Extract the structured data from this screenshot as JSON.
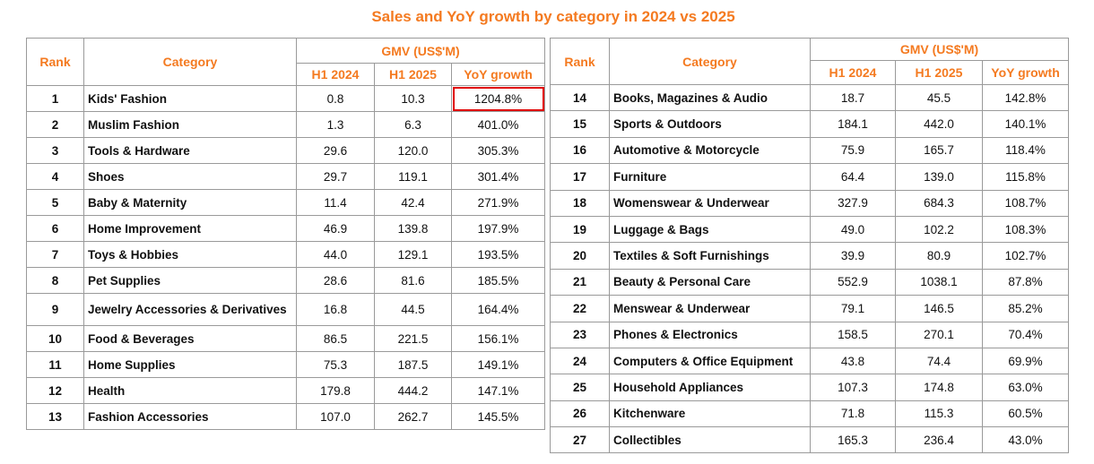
{
  "chart_data": {
    "type": "table",
    "title": "Sales and YoY growth by category in 2024 vs 2025",
    "headers": {
      "rank": "Rank",
      "category": "Category",
      "group": "GMV (US$'M)",
      "h1_2024": "H1 2024",
      "h1_2025": "H1 2025",
      "yoy": "YoY growth"
    },
    "highlight_color": "#e00000",
    "accent_color": "#f47a20",
    "highlighted_cell": "Kids' Fashion YoY growth",
    "rows": [
      {
        "rank": "1",
        "category": "Kids' Fashion",
        "h1_2024": "0.8",
        "h1_2025": "10.3",
        "yoy": "1204.8%"
      },
      {
        "rank": "2",
        "category": "Muslim Fashion",
        "h1_2024": "1.3",
        "h1_2025": "6.3",
        "yoy": "401.0%"
      },
      {
        "rank": "3",
        "category": "Tools & Hardware",
        "h1_2024": "29.6",
        "h1_2025": "120.0",
        "yoy": "305.3%"
      },
      {
        "rank": "4",
        "category": "Shoes",
        "h1_2024": "29.7",
        "h1_2025": "119.1",
        "yoy": "301.4%"
      },
      {
        "rank": "5",
        "category": "Baby & Maternity",
        "h1_2024": "11.4",
        "h1_2025": "42.4",
        "yoy": "271.9%"
      },
      {
        "rank": "6",
        "category": "Home Improvement",
        "h1_2024": "46.9",
        "h1_2025": "139.8",
        "yoy": "197.9%"
      },
      {
        "rank": "7",
        "category": "Toys & Hobbies",
        "h1_2024": "44.0",
        "h1_2025": "129.1",
        "yoy": "193.5%"
      },
      {
        "rank": "8",
        "category": "Pet Supplies",
        "h1_2024": "28.6",
        "h1_2025": "81.6",
        "yoy": "185.5%"
      },
      {
        "rank": "9",
        "category": "Jewelry Accessories & Derivatives",
        "h1_2024": "16.8",
        "h1_2025": "44.5",
        "yoy": "164.4%"
      },
      {
        "rank": "10",
        "category": "Food & Beverages",
        "h1_2024": "86.5",
        "h1_2025": "221.5",
        "yoy": "156.1%"
      },
      {
        "rank": "11",
        "category": "Home Supplies",
        "h1_2024": "75.3",
        "h1_2025": "187.5",
        "yoy": "149.1%"
      },
      {
        "rank": "12",
        "category": "Health",
        "h1_2024": "179.8",
        "h1_2025": "444.2",
        "yoy": "147.1%"
      },
      {
        "rank": "13",
        "category": "Fashion Accessories",
        "h1_2024": "107.0",
        "h1_2025": "262.7",
        "yoy": "145.5%"
      },
      {
        "rank": "14",
        "category": "Books, Magazines & Audio",
        "h1_2024": "18.7",
        "h1_2025": "45.5",
        "yoy": "142.8%"
      },
      {
        "rank": "15",
        "category": "Sports & Outdoors",
        "h1_2024": "184.1",
        "h1_2025": "442.0",
        "yoy": "140.1%"
      },
      {
        "rank": "16",
        "category": "Automotive & Motorcycle",
        "h1_2024": "75.9",
        "h1_2025": "165.7",
        "yoy": "118.4%"
      },
      {
        "rank": "17",
        "category": "Furniture",
        "h1_2024": "64.4",
        "h1_2025": "139.0",
        "yoy": "115.8%"
      },
      {
        "rank": "18",
        "category": "Womenswear & Underwear",
        "h1_2024": "327.9",
        "h1_2025": "684.3",
        "yoy": "108.7%"
      },
      {
        "rank": "19",
        "category": "Luggage & Bags",
        "h1_2024": "49.0",
        "h1_2025": "102.2",
        "yoy": "108.3%"
      },
      {
        "rank": "20",
        "category": "Textiles & Soft Furnishings",
        "h1_2024": "39.9",
        "h1_2025": "80.9",
        "yoy": "102.7%"
      },
      {
        "rank": "21",
        "category": "Beauty & Personal Care",
        "h1_2024": "552.9",
        "h1_2025": "1038.1",
        "yoy": "87.8%"
      },
      {
        "rank": "22",
        "category": "Menswear & Underwear",
        "h1_2024": "79.1",
        "h1_2025": "146.5",
        "yoy": "85.2%"
      },
      {
        "rank": "23",
        "category": "Phones & Electronics",
        "h1_2024": "158.5",
        "h1_2025": "270.1",
        "yoy": "70.4%"
      },
      {
        "rank": "24",
        "category": "Computers & Office Equipment",
        "h1_2024": "43.8",
        "h1_2025": "74.4",
        "yoy": "69.9%"
      },
      {
        "rank": "25",
        "category": "Household Appliances",
        "h1_2024": "107.3",
        "h1_2025": "174.8",
        "yoy": "63.0%"
      },
      {
        "rank": "26",
        "category": "Kitchenware",
        "h1_2024": "71.8",
        "h1_2025": "115.3",
        "yoy": "60.5%"
      },
      {
        "rank": "27",
        "category": "Collectibles",
        "h1_2024": "165.3",
        "h1_2025": "236.4",
        "yoy": "43.0%"
      }
    ]
  }
}
